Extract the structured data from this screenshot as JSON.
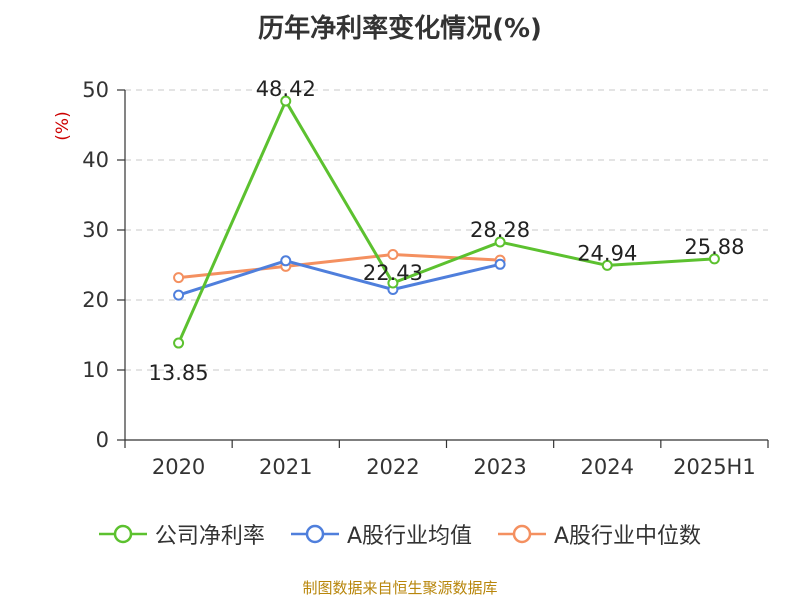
{
  "chart_data": {
    "type": "line",
    "title": "历年净利率变化情况(%)",
    "ylabel": "(%)",
    "categories": [
      "2020",
      "2021",
      "2022",
      "2023",
      "2024",
      "2025H1"
    ],
    "ylim": [
      0,
      50
    ],
    "yticks": [
      0,
      10,
      20,
      30,
      40,
      50
    ],
    "grid": true,
    "legend_position": "bottom",
    "series": [
      {
        "name": "公司净利率",
        "color": "#5cc12f",
        "values": [
          13.85,
          48.42,
          22.43,
          28.28,
          24.94,
          25.88
        ],
        "labels": [
          "13.85",
          "48.42",
          "22.43",
          "28.28",
          "24.94",
          "25.88"
        ]
      },
      {
        "name": "A股行业均值",
        "color": "#4f7fdc",
        "values": [
          20.7,
          25.6,
          21.5,
          25.1,
          null,
          null
        ]
      },
      {
        "name": "A股行业中位数",
        "color": "#f49060",
        "values": [
          23.2,
          24.8,
          26.5,
          25.7,
          null,
          null
        ]
      }
    ]
  },
  "source": "制图数据来自恒生聚源数据库"
}
